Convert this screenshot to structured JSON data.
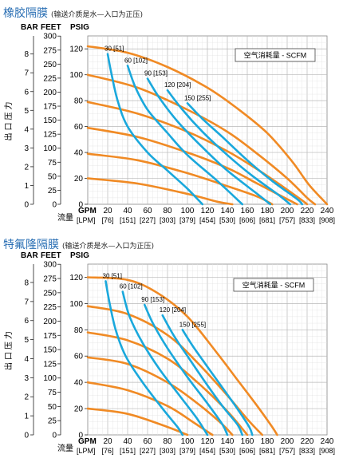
{
  "colors": {
    "pressure": "#f08a24",
    "air": "#1aa8dc",
    "grid": "#c8c8c8",
    "title": "#2a6fb4"
  },
  "labels": {
    "bar": "BAR",
    "feet": "FEET",
    "psig": "PSIG",
    "gpm": "GPM",
    "lpm": "[LPM]",
    "outlet_pressure": "出口压力",
    "flow": "流量",
    "legend": "空气消耗量 - SCFM"
  },
  "axes": {
    "bar_ticks": [
      "0",
      "1",
      "2",
      "3",
      "4",
      "5",
      "6",
      "7",
      "8"
    ],
    "feet_ticks": [
      "0",
      "25",
      "50",
      "75",
      "100",
      "125",
      "150",
      "175",
      "200",
      "225",
      "250",
      "275",
      "300"
    ],
    "psig_ticks": [
      "0",
      "20",
      "40",
      "60",
      "80",
      "100",
      "120"
    ],
    "gpm_ticks": [
      "20",
      "40",
      "60",
      "80",
      "100",
      "120",
      "140",
      "160",
      "180",
      "200",
      "220",
      "240"
    ],
    "lpm_ticks": [
      "[76]",
      "[151]",
      "[227]",
      "[303]",
      "[379]",
      "[454]",
      "[530]",
      "[606]",
      "[681]",
      "[757]",
      "[833]",
      "[908]"
    ]
  },
  "chart_data": [
    {
      "type": "line",
      "title": "橡胶隔膜",
      "subtitle": "(输送介质是水—入口为正压)",
      "x_unit": "GPM",
      "y_unit": "PSIG",
      "xlim": [
        0,
        240
      ],
      "ylim": [
        0,
        130
      ],
      "legend": "空气消耗量 - SCFM",
      "pressure_series": [
        {
          "points": [
            [
              0,
              122
            ],
            [
              40,
              117
            ],
            [
              80,
              106
            ],
            [
              120,
              90
            ],
            [
              150,
              74
            ],
            [
              180,
              55
            ],
            [
              205,
              33
            ],
            [
              222,
              15
            ],
            [
              240,
              0
            ]
          ]
        },
        {
          "points": [
            [
              0,
              100
            ],
            [
              50,
              90
            ],
            [
              100,
              73
            ],
            [
              140,
              56
            ],
            [
              170,
              39
            ],
            [
              200,
              20
            ],
            [
              220,
              5
            ],
            [
              228,
              0
            ]
          ]
        },
        {
          "points": [
            [
              0,
              79
            ],
            [
              50,
              70
            ],
            [
              100,
              56
            ],
            [
              140,
              41
            ],
            [
              170,
              27
            ],
            [
              195,
              14
            ],
            [
              215,
              3
            ],
            [
              220,
              0
            ]
          ]
        },
        {
          "points": [
            [
              0,
              59
            ],
            [
              50,
              52
            ],
            [
              100,
              40
            ],
            [
              140,
              28
            ],
            [
              170,
              16
            ],
            [
              195,
              6
            ],
            [
              210,
              0
            ]
          ]
        },
        {
          "points": [
            [
              0,
              39
            ],
            [
              50,
              34
            ],
            [
              100,
              24
            ],
            [
              140,
              14
            ],
            [
              170,
              6
            ],
            [
              185,
              0
            ]
          ]
        },
        {
          "points": [
            [
              0,
              20
            ],
            [
              50,
              16
            ],
            [
              100,
              8
            ],
            [
              130,
              2
            ],
            [
              145,
              0
            ]
          ]
        }
      ],
      "air_series": [
        {
          "name": "30 [51]",
          "points": [
            [
              20,
              116
            ],
            [
              24,
              100
            ],
            [
              30,
              80
            ],
            [
              40,
              60
            ],
            [
              60,
              40
            ],
            [
              80,
              26
            ],
            [
              100,
              12
            ],
            [
              115,
              0
            ]
          ]
        },
        {
          "name": "60 [102]",
          "points": [
            [
              40,
              107
            ],
            [
              48,
              90
            ],
            [
              60,
              73
            ],
            [
              80,
              55
            ],
            [
              100,
              38
            ],
            [
              130,
              18
            ],
            [
              155,
              0
            ]
          ]
        },
        {
          "name": "90 [153]",
          "points": [
            [
              60,
              97
            ],
            [
              72,
              82
            ],
            [
              90,
              64
            ],
            [
              115,
              44
            ],
            [
              140,
              26
            ],
            [
              170,
              8
            ],
            [
              183,
              0
            ]
          ]
        },
        {
          "name": "120 [204]",
          "points": [
            [
              80,
              88
            ],
            [
              95,
              73
            ],
            [
              115,
              56
            ],
            [
              140,
              38
            ],
            [
              165,
              22
            ],
            [
              190,
              8
            ],
            [
              203,
              0
            ]
          ]
        },
        {
          "name": "150 [255]",
          "points": [
            [
              100,
              78
            ],
            [
              115,
              66
            ],
            [
              135,
              52
            ],
            [
              160,
              34
            ],
            [
              185,
              18
            ],
            [
              210,
              4
            ],
            [
              215,
              0
            ]
          ]
        }
      ]
    },
    {
      "type": "line",
      "title": "特氟隆隔膜",
      "subtitle": "(输送介质是水—入口为正压)",
      "x_unit": "GPM",
      "y_unit": "PSIG",
      "xlim": [
        0,
        240
      ],
      "ylim": [
        0,
        130
      ],
      "legend": "空气消耗量 - SCFM",
      "pressure_series": [
        {
          "points": [
            [
              0,
              120
            ],
            [
              40,
              118
            ],
            [
              70,
              108
            ],
            [
              100,
              90
            ],
            [
              130,
              62
            ],
            [
              150,
              42
            ],
            [
              170,
              22
            ],
            [
              185,
              6
            ],
            [
              190,
              0
            ]
          ]
        },
        {
          "points": [
            [
              0,
              98
            ],
            [
              40,
              92
            ],
            [
              80,
              76
            ],
            [
              110,
              55
            ],
            [
              140,
              30
            ],
            [
              160,
              12
            ],
            [
              175,
              0
            ]
          ]
        },
        {
          "points": [
            [
              0,
              78
            ],
            [
              40,
              72
            ],
            [
              80,
              58
            ],
            [
              110,
              40
            ],
            [
              140,
              18
            ],
            [
              160,
              0
            ]
          ]
        },
        {
          "points": [
            [
              0,
              59
            ],
            [
              40,
              54
            ],
            [
              80,
              40
            ],
            [
              110,
              24
            ],
            [
              135,
              8
            ],
            [
              145,
              0
            ]
          ]
        },
        {
          "points": [
            [
              0,
              40
            ],
            [
              40,
              34
            ],
            [
              80,
              22
            ],
            [
              105,
              10
            ],
            [
              125,
              0
            ]
          ]
        },
        {
          "points": [
            [
              0,
              20
            ],
            [
              40,
              16
            ],
            [
              80,
              6
            ],
            [
              100,
              0
            ]
          ]
        }
      ],
      "air_series": [
        {
          "name": "30 [51]",
          "points": [
            [
              18,
              117
            ],
            [
              22,
              100
            ],
            [
              28,
              80
            ],
            [
              38,
              60
            ],
            [
              55,
              40
            ],
            [
              75,
              20
            ],
            [
              90,
              6
            ],
            [
              95,
              0
            ]
          ]
        },
        {
          "name": "60 [102]",
          "points": [
            [
              35,
              109
            ],
            [
              42,
              90
            ],
            [
              55,
              70
            ],
            [
              72,
              50
            ],
            [
              92,
              30
            ],
            [
              110,
              12
            ],
            [
              120,
              0
            ]
          ]
        },
        {
          "name": "90 [153]",
          "points": [
            [
              57,
              99
            ],
            [
              66,
              84
            ],
            [
              80,
              66
            ],
            [
              100,
              44
            ],
            [
              120,
              24
            ],
            [
              135,
              8
            ],
            [
              140,
              0
            ]
          ]
        },
        {
          "name": "120 [204]",
          "points": [
            [
              75,
              91
            ],
            [
              86,
              76
            ],
            [
              100,
              60
            ],
            [
              118,
              40
            ],
            [
              135,
              22
            ],
            [
              150,
              8
            ],
            [
              155,
              0
            ]
          ]
        },
        {
          "name": "150 [255]",
          "points": [
            [
              95,
              80
            ],
            [
              105,
              68
            ],
            [
              118,
              54
            ],
            [
              135,
              36
            ],
            [
              150,
              20
            ],
            [
              162,
              6
            ],
            [
              165,
              0
            ]
          ]
        }
      ]
    }
  ]
}
